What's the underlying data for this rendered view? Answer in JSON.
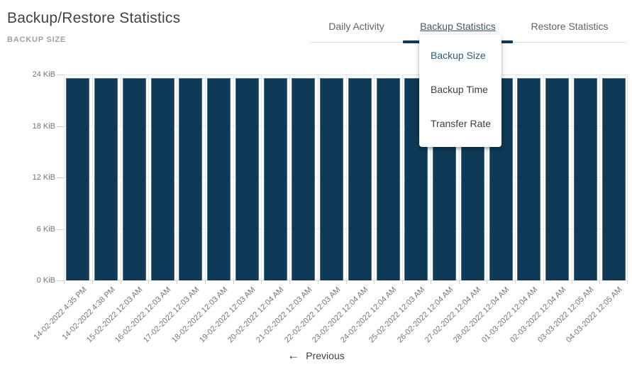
{
  "page": {
    "title": "Backup/Restore Statistics",
    "subtitle": "BACKUP SIZE"
  },
  "tabs": [
    {
      "label": "Daily Activity",
      "active": false
    },
    {
      "label": "Backup Statistics",
      "active": true
    },
    {
      "label": "Restore Statistics",
      "active": false
    }
  ],
  "dropdown": {
    "items": [
      {
        "label": "Backup Size",
        "selected": true
      },
      {
        "label": "Backup Time",
        "selected": false
      },
      {
        "label": "Transfer Rate",
        "selected": false
      }
    ]
  },
  "pagination": {
    "previous_label": "Previous",
    "back_arrow_icon": "←"
  },
  "colors": {
    "accent_navy": "#0d3a5c",
    "bar_fill": "#0e3a57",
    "bar_stroke": "#4a708d",
    "grid": "#e6e6e6",
    "axis_text": "#757575",
    "tab_inactive": "#5f6368",
    "tab_active": "#44546a",
    "dropdown_selected": "#315a7d"
  },
  "chart_data": {
    "type": "bar",
    "title": "BACKUP SIZE",
    "categories": [
      "14-02-2022 4:35 PM",
      "14-02-2022 4:38 PM",
      "15-02-2022 12:03 AM",
      "16-02-2022 12:03 AM",
      "17-02-2022 12:03 AM",
      "18-02-2022 12:03 AM",
      "19-02-2022 12:03 AM",
      "20-02-2022 12:04 AM",
      "21-02-2022 12:03 AM",
      "22-02-2022 12:03 AM",
      "23-02-2022 12:04 AM",
      "24-02-2022 12:04 AM",
      "25-02-2022 12:03 AM",
      "26-02-2022 12:04 AM",
      "27-02-2022 12:04 AM",
      "28-02-2022 12:04 AM",
      "01-03-2022 12:04 AM",
      "02-03-2022 12:04 AM",
      "03-03-2022 12:05 AM",
      "04-03-2022 12:05 AM"
    ],
    "values": [
      23.6,
      23.6,
      23.6,
      23.6,
      23.6,
      23.6,
      23.6,
      23.6,
      23.6,
      23.6,
      23.6,
      23.6,
      23.6,
      23.6,
      23.6,
      23.6,
      23.6,
      23.6,
      23.6,
      23.6
    ],
    "xlabel": "",
    "ylabel": "",
    "ylim": [
      0,
      24
    ],
    "yticks": [
      "0 KiB",
      "6 KiB",
      "12 KiB",
      "18 KiB",
      "24 KiB"
    ],
    "grid": true,
    "legend": "none",
    "bar_color": "#0e3a57"
  }
}
